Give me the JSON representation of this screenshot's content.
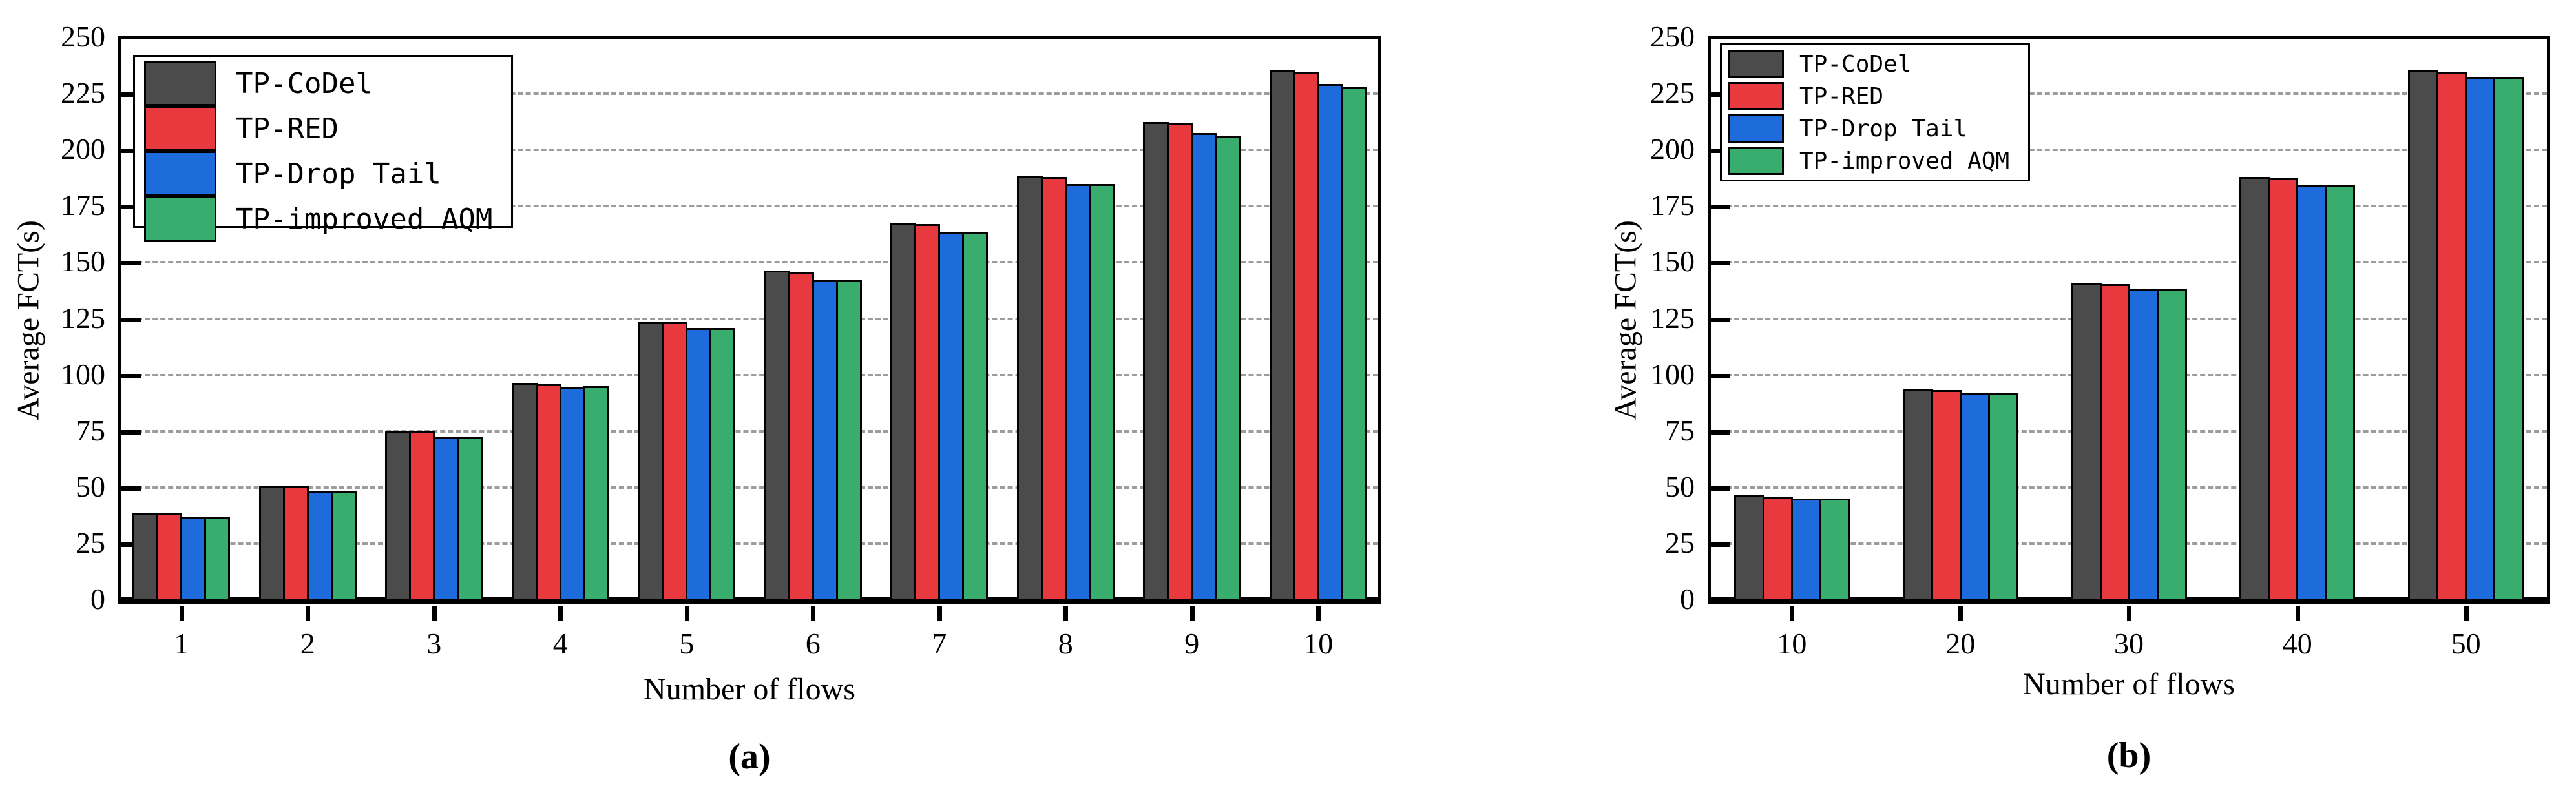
{
  "figure_caption_a": "(a)",
  "figure_caption_b": "(b)",
  "accent_colors": {
    "tp_codel": "#4b4b4b",
    "tp_red": "#e83a3e",
    "tp_drop_tail": "#1e6cdb",
    "tp_improved_aqm": "#39ad6d",
    "gridline": "#9c9c9c",
    "axis": "#000000"
  },
  "chart_data": [
    {
      "type": "bar",
      "title": "",
      "xlabel": "Number of flows",
      "ylabel": "Average FCT(s)",
      "caption": "(a)",
      "ylim": [
        0,
        250
      ],
      "yticks": [
        0,
        25,
        50,
        75,
        100,
        125,
        150,
        175,
        200,
        225,
        250
      ],
      "grid": "horizontal-dotted",
      "legend_position": "upper left",
      "categories": [
        "1",
        "2",
        "3",
        "4",
        "5",
        "6",
        "7",
        "8",
        "9",
        "10"
      ],
      "series": [
        {
          "name": "TP-CoDel",
          "color": "#4b4b4b",
          "values": [
            39,
            51,
            75.5,
            97,
            124,
            147,
            168,
            189,
            213,
            236
          ]
        },
        {
          "name": "TP-RED",
          "color": "#e83a3e",
          "values": [
            39,
            51,
            75.5,
            96.5,
            124,
            146.5,
            167.5,
            188.5,
            212.5,
            235
          ]
        },
        {
          "name": "TP-Drop Tail",
          "color": "#1e6cdb",
          "values": [
            37.5,
            49,
            73,
            95,
            121.5,
            143,
            164,
            185.5,
            208,
            230
          ]
        },
        {
          "name": "TP-improved AQM",
          "color": "#39ad6d",
          "values": [
            37.5,
            49,
            73,
            95.5,
            121.5,
            143,
            164,
            185.5,
            207,
            228.5
          ]
        }
      ]
    },
    {
      "type": "bar",
      "title": "",
      "xlabel": "Number of flows",
      "ylabel": "Average FCT(s)",
      "caption": "(b)",
      "ylim": [
        0,
        250
      ],
      "yticks": [
        0,
        25,
        50,
        75,
        100,
        125,
        150,
        175,
        200,
        225,
        250
      ],
      "grid": "horizontal-dotted",
      "legend_position": "upper left",
      "categories": [
        "10",
        "20",
        "30",
        "40",
        "50"
      ],
      "series": [
        {
          "name": "TP-CoDel",
          "color": "#4b4b4b",
          "values": [
            47,
            94.5,
            141.5,
            188.5,
            236
          ]
        },
        {
          "name": "TP-RED",
          "color": "#e83a3e",
          "values": [
            46.5,
            94,
            141,
            188,
            235.5
          ]
        },
        {
          "name": "TP-Drop Tail",
          "color": "#1e6cdb",
          "values": [
            45.5,
            92.5,
            139,
            185,
            233
          ]
        },
        {
          "name": "TP-improved AQM",
          "color": "#39ad6d",
          "values": [
            45.5,
            92.5,
            139,
            185,
            233
          ]
        }
      ]
    }
  ]
}
